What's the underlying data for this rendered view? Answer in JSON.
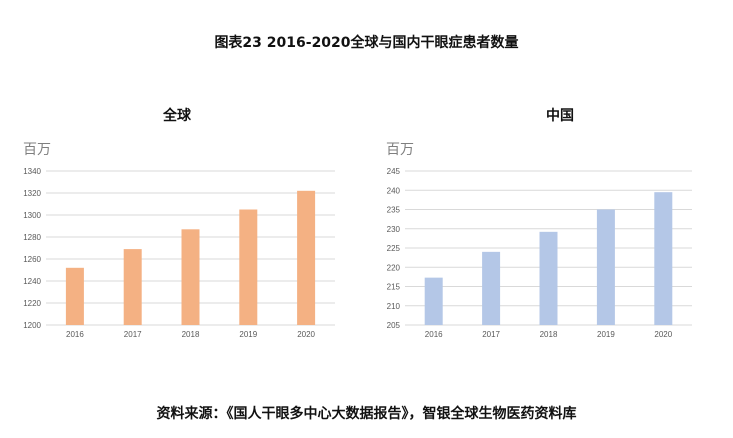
{
  "figure_title": "图表23 2016-2020全球与国内干眼症患者数量",
  "source": "资料来源：《国人干眼多中心大数据报告》，智银全球生物医药资料库",
  "chart_data": [
    {
      "type": "bar",
      "title": "全球",
      "unit_label": "百万",
      "categories": [
        "2016",
        "2017",
        "2018",
        "2019",
        "2020"
      ],
      "values": [
        1252,
        1269,
        1287,
        1305,
        1322
      ],
      "ylim": [
        1200,
        1340
      ],
      "yticks": [
        1200,
        1220,
        1240,
        1260,
        1280,
        1300,
        1320,
        1340
      ],
      "grid": true,
      "color": "#f4b183"
    },
    {
      "type": "bar",
      "title": "中国",
      "unit_label": "百万",
      "categories": [
        "2016",
        "2017",
        "2018",
        "2019",
        "2020"
      ],
      "values": [
        217.3,
        224,
        229.2,
        235,
        239.5
      ],
      "ylim": [
        205,
        245
      ],
      "yticks": [
        205,
        210,
        215,
        220,
        225,
        230,
        235,
        240,
        245
      ],
      "grid": true,
      "color": "#b4c7e7"
    }
  ]
}
